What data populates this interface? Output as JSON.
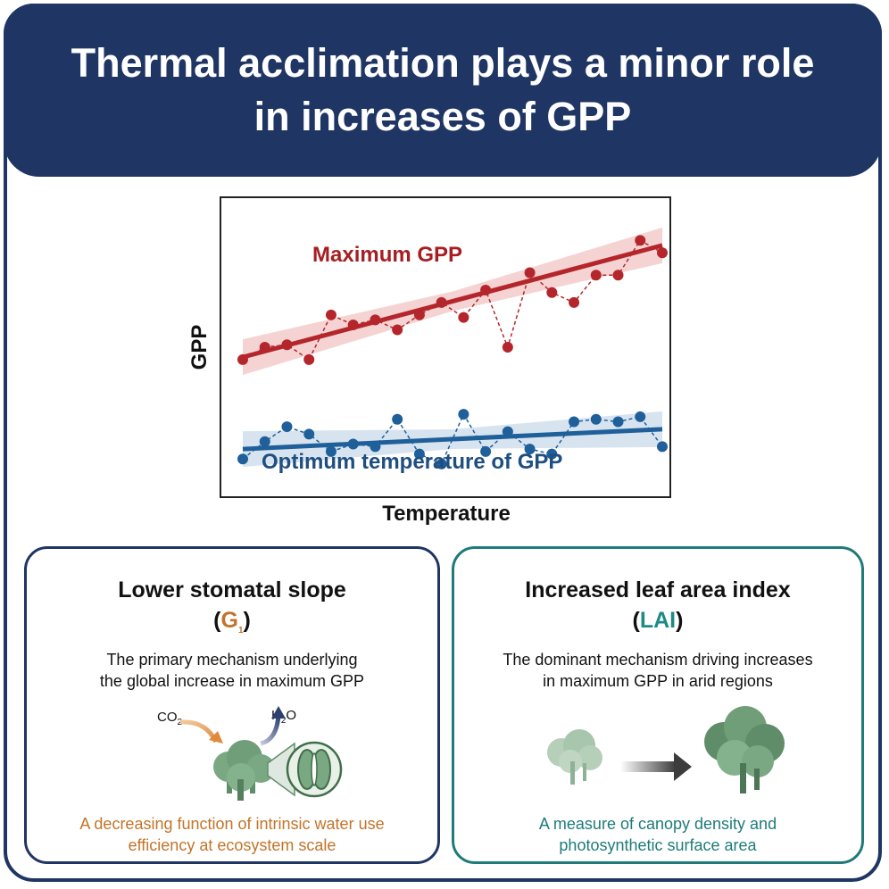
{
  "banner": {
    "line1": "Thermal acclimation plays a minor role",
    "line2": "in increases of GPP"
  },
  "chart_data": {
    "type": "line",
    "title": "",
    "xlabel": "Temperature",
    "ylabel": "GPP",
    "x": [
      1,
      2,
      3,
      4,
      5,
      6,
      7,
      8,
      9,
      10,
      11,
      12,
      13,
      14,
      15,
      16,
      17,
      18,
      19,
      20
    ],
    "series": [
      {
        "name": "Maximum GPP",
        "color": "#b4262b",
        "values": [
          0.25,
          0.3,
          0.31,
          0.25,
          0.43,
          0.39,
          0.41,
          0.37,
          0.43,
          0.48,
          0.42,
          0.53,
          0.3,
          0.6,
          0.52,
          0.48,
          0.59,
          0.59,
          0.73,
          0.68
        ],
        "trend": [
          0.26,
          0.71
        ]
      },
      {
        "name": "Optimum temperature of GPP",
        "color": "#1f5f9a",
        "values": [
          -0.15,
          -0.08,
          -0.02,
          -0.05,
          -0.12,
          -0.09,
          -0.1,
          0.01,
          -0.13,
          -0.17,
          0.03,
          -0.12,
          -0.04,
          -0.11,
          -0.13,
          0.0,
          0.01,
          0.0,
          0.02,
          -0.1
        ],
        "trend": [
          -0.11,
          -0.03
        ]
      }
    ],
    "grid": false,
    "legend": "none"
  },
  "cards": {
    "left": {
      "title": "Lower stomatal slope",
      "abbr_open": "(",
      "abbr_main": "G",
      "abbr_sub": "1",
      "abbr_close": ")",
      "desc1": "The primary mechanism underlying",
      "desc2": "the global increase in maximum GPP",
      "chem_in": "CO",
      "chem_in_sub": "2",
      "chem_out_pre": "H",
      "chem_out_sub": "2",
      "chem_out_post": "O",
      "foot1": "A decreasing function of intrinsic water use",
      "foot2": "efficiency at ecosystem scale"
    },
    "right": {
      "title": "Increased leaf area index",
      "abbr_open": "(",
      "abbr_main": "LAI",
      "abbr_close": ")",
      "desc1": "The dominant mechanism driving increases",
      "desc2": "in maximum GPP in arid regions",
      "foot1": "A measure of canopy density and",
      "foot2": "photosynthetic surface area"
    }
  },
  "colors": {
    "navy": "#1f3564",
    "red": "#b4262b",
    "blue": "#1f5f9a",
    "teal": "#1e7b7a",
    "orange": "#c2742a",
    "tree": "#6f9e78"
  },
  "icons": {
    "left": [
      "tree-cluster-icon",
      "stomata-icon",
      "co2-arrow-icon",
      "h2o-arrow-icon"
    ],
    "right": [
      "small-tree-icon",
      "gradient-arrow-icon",
      "large-tree-icon"
    ]
  }
}
